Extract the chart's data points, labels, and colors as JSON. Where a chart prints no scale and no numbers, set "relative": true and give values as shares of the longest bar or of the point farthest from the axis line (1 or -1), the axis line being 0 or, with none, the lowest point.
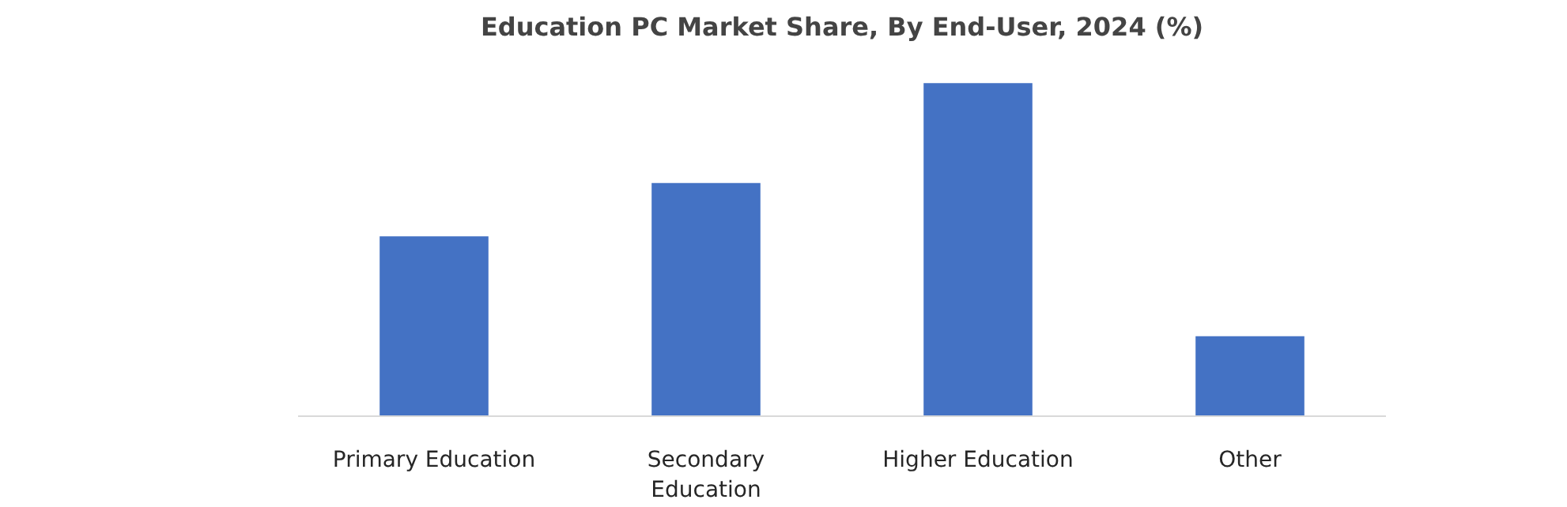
{
  "chart_data": {
    "type": "bar",
    "title": "Education PC Market Share, By End-User, 2024 (%)",
    "categories": [
      "Primary Education",
      "Secondary Education",
      "Higher Education",
      "Other"
    ],
    "values": [
      0.54,
      0.7,
      1,
      0.24
    ],
    "color": "#4472c4",
    "relative": true
  }
}
